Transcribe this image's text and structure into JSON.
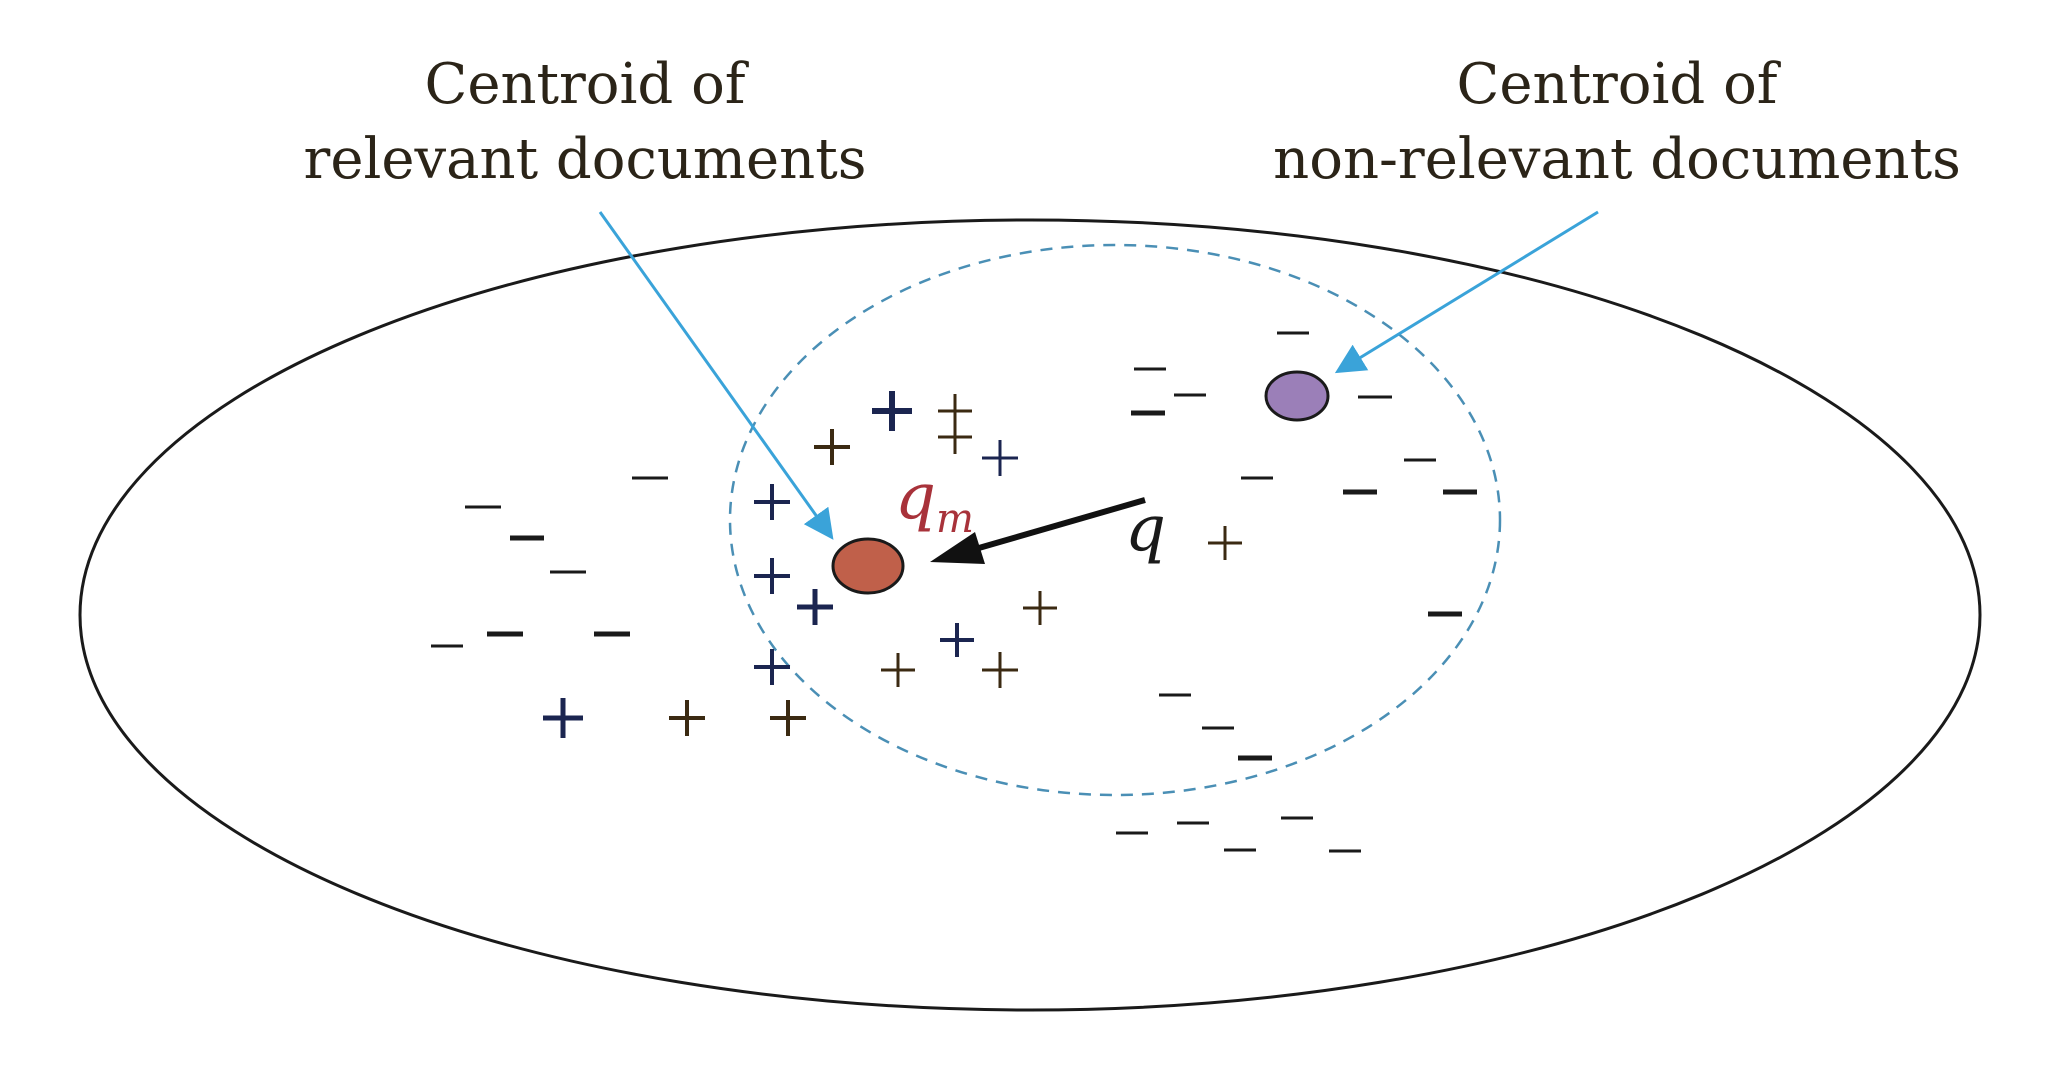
{
  "labels": {
    "relevant_line1": "Centroid of",
    "relevant_line2": "relevant documents",
    "nonrelevant_line1": "Centroid of",
    "nonrelevant_line2": "non-relevant documents",
    "query": "q",
    "modified_query_base": "q",
    "modified_query_sub": "m"
  },
  "colors": {
    "outline": "#1a1a1a",
    "dashed_circle": "#4a8fb5",
    "pointer_arrow": "#3aa3d9",
    "relevant_centroid": "#c0604a",
    "nonrelevant_centroid": "#9b7fb8",
    "modified_query_label": "#a8323a",
    "plus_dark": "#1b2550",
    "plus_brown": "#3b2a12",
    "minus": "#1a1a1a"
  },
  "icons": {
    "relevant_doc": "plus-sign",
    "nonrelevant_doc": "minus-sign"
  }
}
